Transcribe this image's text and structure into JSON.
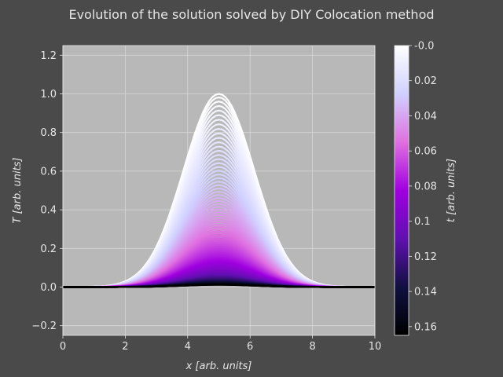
{
  "chart_data": {
    "type": "line",
    "title": "Evolution of the solution solved by DIY Colocation method",
    "xlabel": "x [arb. units]",
    "ylabel": "T [arb. units]",
    "xlim": [
      0,
      10
    ],
    "ylim": [
      -0.25,
      1.25
    ],
    "xticks": [
      0,
      2,
      4,
      6,
      8,
      10
    ],
    "yticks": [
      -0.2,
      0.0,
      0.2,
      0.4,
      0.6,
      0.8,
      1.0,
      1.2
    ],
    "xtick_labels": [
      "0",
      "2",
      "4",
      "6",
      "8",
      "10"
    ],
    "ytick_labels": [
      "−0.2",
      "0.0",
      "0.2",
      "0.4",
      "0.6",
      "0.8",
      "1.0",
      "1.2"
    ],
    "grid": true,
    "plot_background": "#b8b8b8",
    "series_model": {
      "description": "family of curves T(x,t) = A(t) * exp(-((x-5)/sigma)^2)",
      "center": 5,
      "sigma": 1.6,
      "peak_at_t0": 1.0
    },
    "time_range": [
      0,
      0.165
    ],
    "colorbar": {
      "label": "t [arb. units]",
      "colormap": "gnuplot2 (reversed)",
      "direction": "top-to-bottom",
      "ticks": [
        0.0,
        0.02,
        0.04,
        0.06,
        0.08,
        0.1,
        0.12,
        0.14,
        0.16
      ],
      "tick_labels": [
        "-0.0",
        "0.02",
        "0.04",
        "0.06",
        "0.08",
        "0.1",
        "0.12",
        "0.14",
        "0.16"
      ],
      "colors": [
        "#ffffff",
        "#d0d0ff",
        "#e070e0",
        "#a000e0",
        "#6010b0",
        "#101040",
        "#000000"
      ]
    }
  }
}
